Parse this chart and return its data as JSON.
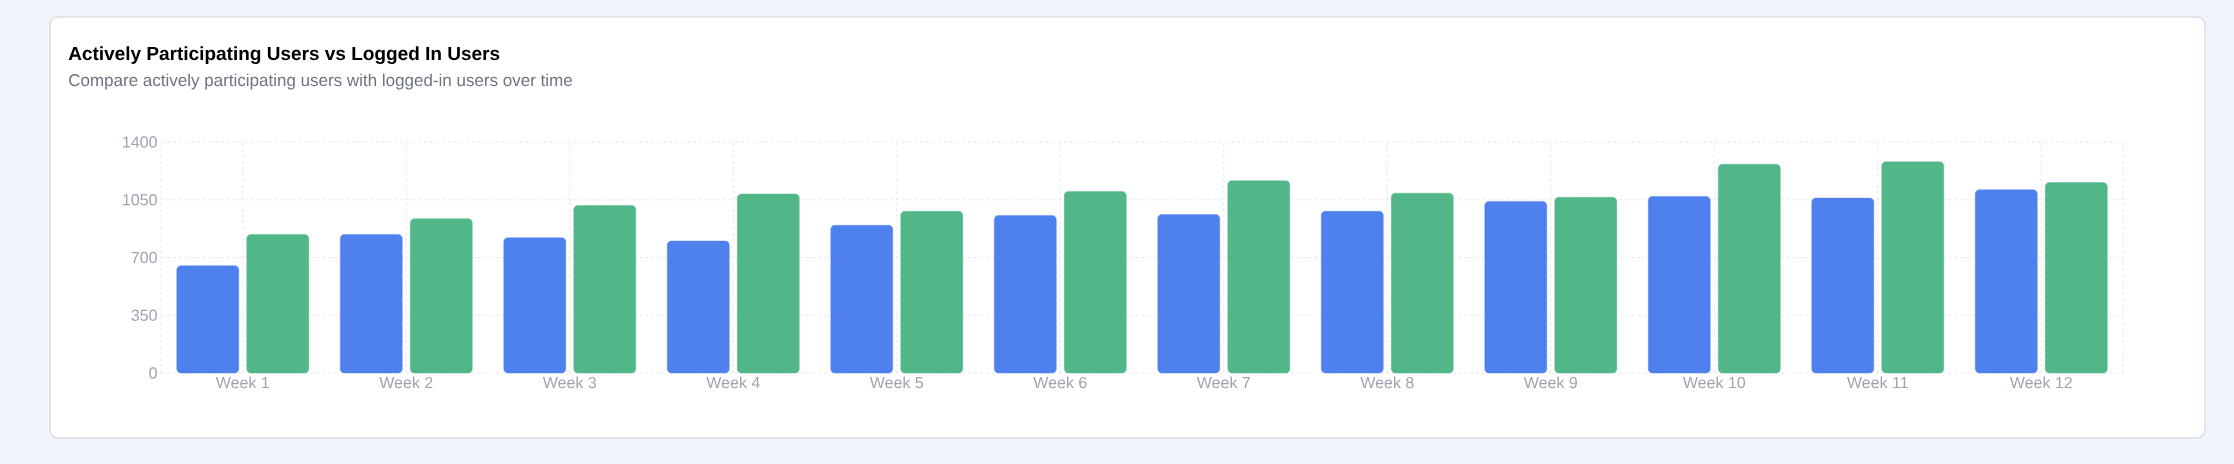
{
  "chart_data": {
    "type": "bar",
    "title": "Actively Participating Users vs Logged In Users",
    "subtitle": "Compare actively participating users with logged-in users over time",
    "categories": [
      "Week 1",
      "Week 2",
      "Week 3",
      "Week 4",
      "Week 5",
      "Week 6",
      "Week 7",
      "Week 8",
      "Week 9",
      "Week 10",
      "Week 11",
      "Week 12"
    ],
    "series": [
      {
        "color": "#4e80ee",
        "values": [
          650,
          840,
          820,
          800,
          895,
          955,
          960,
          980,
          1040,
          1070,
          1060,
          1110
        ]
      },
      {
        "color": "#52b788",
        "values": [
          840,
          935,
          1015,
          1085,
          980,
          1100,
          1165,
          1090,
          1065,
          1265,
          1280,
          1155
        ]
      }
    ],
    "ylim": [
      0,
      1400
    ],
    "yticks": [
      0,
      350,
      700,
      1050,
      1400
    ],
    "grid": true,
    "legend": false
  }
}
